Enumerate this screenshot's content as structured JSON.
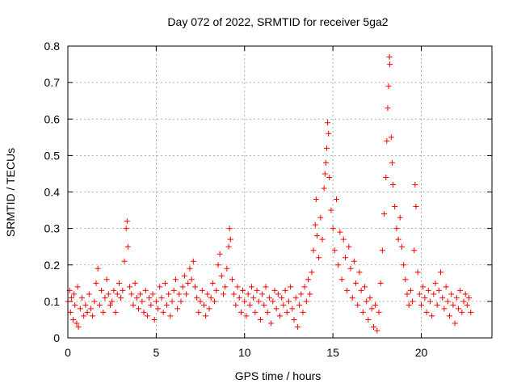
{
  "chart_data": {
    "type": "scatter",
    "title": "Day 072 of 2022, SRMTID for receiver 5ga2",
    "xlabel": "GPS time / hours",
    "ylabel": "SRMTID / TECUs",
    "xlim": [
      0,
      24
    ],
    "ylim": [
      0,
      0.8
    ],
    "x_ticks": [
      0,
      5,
      10,
      15,
      20
    ],
    "x_tick_labels": [
      "0",
      "5",
      "10",
      "15",
      "20"
    ],
    "y_ticks": [
      0,
      0.1,
      0.2,
      0.3,
      0.4,
      0.5,
      0.6,
      0.7,
      0.8
    ],
    "y_tick_labels": [
      "0",
      "0.1",
      "0.2",
      "0.3",
      "0.4",
      "0.5",
      "0.6",
      "0.7",
      "0.8"
    ],
    "grid": true,
    "marker": "plus",
    "marker_color": "#ff0000",
    "series": [
      {
        "name": "SRMTID",
        "points": [
          [
            0.0,
            0.1
          ],
          [
            0.1,
            0.13
          ],
          [
            0.15,
            0.07
          ],
          [
            0.2,
            0.11
          ],
          [
            0.3,
            0.05
          ],
          [
            0.35,
            0.12
          ],
          [
            0.4,
            0.09
          ],
          [
            0.5,
            0.04
          ],
          [
            0.55,
            0.14
          ],
          [
            0.6,
            0.03
          ],
          [
            0.7,
            0.08
          ],
          [
            0.8,
            0.11
          ],
          [
            0.9,
            0.06
          ],
          [
            1.0,
            0.09
          ],
          [
            1.1,
            0.07
          ],
          [
            1.2,
            0.12
          ],
          [
            1.3,
            0.08
          ],
          [
            1.4,
            0.06
          ],
          [
            1.5,
            0.1
          ],
          [
            1.6,
            0.15
          ],
          [
            1.7,
            0.19
          ],
          [
            1.8,
            0.09
          ],
          [
            1.9,
            0.13
          ],
          [
            2.0,
            0.07
          ],
          [
            2.1,
            0.11
          ],
          [
            2.2,
            0.16
          ],
          [
            2.3,
            0.12
          ],
          [
            2.4,
            0.09
          ],
          [
            2.5,
            0.1
          ],
          [
            2.6,
            0.13
          ],
          [
            2.7,
            0.07
          ],
          [
            2.8,
            0.12
          ],
          [
            2.9,
            0.15
          ],
          [
            3.0,
            0.11
          ],
          [
            3.1,
            0.13
          ],
          [
            3.2,
            0.21
          ],
          [
            3.3,
            0.3
          ],
          [
            3.35,
            0.32
          ],
          [
            3.4,
            0.25
          ],
          [
            3.5,
            0.14
          ],
          [
            3.6,
            0.12
          ],
          [
            3.7,
            0.09
          ],
          [
            3.8,
            0.15
          ],
          [
            3.9,
            0.11
          ],
          [
            4.0,
            0.08
          ],
          [
            4.1,
            0.12
          ],
          [
            4.2,
            0.1
          ],
          [
            4.3,
            0.07
          ],
          [
            4.4,
            0.13
          ],
          [
            4.5,
            0.06
          ],
          [
            4.6,
            0.11
          ],
          [
            4.7,
            0.09
          ],
          [
            4.8,
            0.12
          ],
          [
            4.9,
            0.05
          ],
          [
            5.0,
            0.1
          ],
          [
            5.1,
            0.08
          ],
          [
            5.2,
            0.14
          ],
          [
            5.3,
            0.11
          ],
          [
            5.4,
            0.07
          ],
          [
            5.5,
            0.15
          ],
          [
            5.6,
            0.09
          ],
          [
            5.7,
            0.12
          ],
          [
            5.8,
            0.06
          ],
          [
            5.9,
            0.1
          ],
          [
            6.0,
            0.13
          ],
          [
            6.1,
            0.16
          ],
          [
            6.2,
            0.08
          ],
          [
            6.3,
            0.12
          ],
          [
            6.4,
            0.1
          ],
          [
            6.5,
            0.14
          ],
          [
            6.6,
            0.17
          ],
          [
            6.7,
            0.12
          ],
          [
            6.8,
            0.15
          ],
          [
            6.9,
            0.19
          ],
          [
            7.0,
            0.16
          ],
          [
            7.1,
            0.21
          ],
          [
            7.2,
            0.14
          ],
          [
            7.3,
            0.11
          ],
          [
            7.4,
            0.07
          ],
          [
            7.5,
            0.1
          ],
          [
            7.6,
            0.13
          ],
          [
            7.7,
            0.09
          ],
          [
            7.8,
            0.06
          ],
          [
            7.9,
            0.12
          ],
          [
            8.0,
            0.08
          ],
          [
            8.1,
            0.11
          ],
          [
            8.2,
            0.15
          ],
          [
            8.3,
            0.1
          ],
          [
            8.4,
            0.13
          ],
          [
            8.5,
            0.2
          ],
          [
            8.6,
            0.23
          ],
          [
            8.7,
            0.17
          ],
          [
            8.8,
            0.12
          ],
          [
            8.9,
            0.14
          ],
          [
            9.0,
            0.19
          ],
          [
            9.1,
            0.25
          ],
          [
            9.15,
            0.3
          ],
          [
            9.2,
            0.27
          ],
          [
            9.3,
            0.16
          ],
          [
            9.4,
            0.12
          ],
          [
            9.5,
            0.09
          ],
          [
            9.6,
            0.14
          ],
          [
            9.7,
            0.11
          ],
          [
            9.8,
            0.07
          ],
          [
            9.9,
            0.13
          ],
          [
            10.0,
            0.1
          ],
          [
            10.1,
            0.06
          ],
          [
            10.2,
            0.12
          ],
          [
            10.3,
            0.09
          ],
          [
            10.4,
            0.14
          ],
          [
            10.5,
            0.11
          ],
          [
            10.6,
            0.07
          ],
          [
            10.7,
            0.13
          ],
          [
            10.8,
            0.1
          ],
          [
            10.9,
            0.05
          ],
          [
            11.0,
            0.12
          ],
          [
            11.1,
            0.09
          ],
          [
            11.2,
            0.14
          ],
          [
            11.3,
            0.07
          ],
          [
            11.4,
            0.11
          ],
          [
            11.5,
            0.04
          ],
          [
            11.6,
            0.1
          ],
          [
            11.7,
            0.13
          ],
          [
            11.8,
            0.08
          ],
          [
            11.9,
            0.12
          ],
          [
            12.0,
            0.06
          ],
          [
            12.1,
            0.11
          ],
          [
            12.2,
            0.09
          ],
          [
            12.3,
            0.13
          ],
          [
            12.4,
            0.07
          ],
          [
            12.5,
            0.1
          ],
          [
            12.6,
            0.14
          ],
          [
            12.7,
            0.08
          ],
          [
            12.8,
            0.05
          ],
          [
            12.9,
            0.11
          ],
          [
            13.0,
            0.03
          ],
          [
            13.1,
            0.09
          ],
          [
            13.2,
            0.12
          ],
          [
            13.3,
            0.07
          ],
          [
            13.4,
            0.14
          ],
          [
            13.5,
            0.1
          ],
          [
            13.6,
            0.16
          ],
          [
            13.7,
            0.12
          ],
          [
            13.8,
            0.18
          ],
          [
            13.9,
            0.24
          ],
          [
            14.0,
            0.31
          ],
          [
            14.05,
            0.38
          ],
          [
            14.1,
            0.28
          ],
          [
            14.2,
            0.22
          ],
          [
            14.3,
            0.33
          ],
          [
            14.4,
            0.27
          ],
          [
            14.5,
            0.41
          ],
          [
            14.55,
            0.45
          ],
          [
            14.6,
            0.48
          ],
          [
            14.65,
            0.52
          ],
          [
            14.7,
            0.59
          ],
          [
            14.75,
            0.56
          ],
          [
            14.8,
            0.44
          ],
          [
            14.9,
            0.35
          ],
          [
            15.0,
            0.3
          ],
          [
            15.1,
            0.24
          ],
          [
            15.2,
            0.38
          ],
          [
            15.3,
            0.2
          ],
          [
            15.4,
            0.29
          ],
          [
            15.5,
            0.16
          ],
          [
            15.6,
            0.27
          ],
          [
            15.7,
            0.22
          ],
          [
            15.8,
            0.13
          ],
          [
            15.9,
            0.25
          ],
          [
            16.0,
            0.19
          ],
          [
            16.1,
            0.11
          ],
          [
            16.2,
            0.21
          ],
          [
            16.3,
            0.15
          ],
          [
            16.4,
            0.09
          ],
          [
            16.5,
            0.18
          ],
          [
            16.6,
            0.13
          ],
          [
            16.7,
            0.07
          ],
          [
            16.8,
            0.14
          ],
          [
            16.9,
            0.1
          ],
          [
            17.0,
            0.05
          ],
          [
            17.1,
            0.11
          ],
          [
            17.2,
            0.08
          ],
          [
            17.3,
            0.03
          ],
          [
            17.4,
            0.09
          ],
          [
            17.5,
            0.02
          ],
          [
            17.6,
            0.07
          ],
          [
            17.7,
            0.15
          ],
          [
            17.8,
            0.24
          ],
          [
            17.9,
            0.34
          ],
          [
            18.0,
            0.44
          ],
          [
            18.05,
            0.54
          ],
          [
            18.1,
            0.63
          ],
          [
            18.15,
            0.69
          ],
          [
            18.2,
            0.77
          ],
          [
            18.22,
            0.75
          ],
          [
            18.3,
            0.55
          ],
          [
            18.35,
            0.48
          ],
          [
            18.4,
            0.42
          ],
          [
            18.5,
            0.36
          ],
          [
            18.6,
            0.3
          ],
          [
            18.7,
            0.27
          ],
          [
            18.8,
            0.33
          ],
          [
            18.9,
            0.25
          ],
          [
            19.0,
            0.2
          ],
          [
            19.1,
            0.16
          ],
          [
            19.2,
            0.12
          ],
          [
            19.3,
            0.09
          ],
          [
            19.4,
            0.13
          ],
          [
            19.5,
            0.1
          ],
          [
            19.6,
            0.24
          ],
          [
            19.65,
            0.42
          ],
          [
            19.7,
            0.36
          ],
          [
            19.8,
            0.18
          ],
          [
            19.9,
            0.12
          ],
          [
            20.0,
            0.09
          ],
          [
            20.1,
            0.14
          ],
          [
            20.2,
            0.11
          ],
          [
            20.3,
            0.07
          ],
          [
            20.4,
            0.13
          ],
          [
            20.5,
            0.1
          ],
          [
            20.6,
            0.06
          ],
          [
            20.7,
            0.12
          ],
          [
            20.8,
            0.15
          ],
          [
            20.9,
            0.09
          ],
          [
            21.0,
            0.13
          ],
          [
            21.1,
            0.18
          ],
          [
            21.2,
            0.11
          ],
          [
            21.3,
            0.08
          ],
          [
            21.4,
            0.14
          ],
          [
            21.5,
            0.1
          ],
          [
            21.6,
            0.06
          ],
          [
            21.7,
            0.12
          ],
          [
            21.8,
            0.09
          ],
          [
            21.9,
            0.04
          ],
          [
            22.0,
            0.11
          ],
          [
            22.1,
            0.08
          ],
          [
            22.2,
            0.13
          ],
          [
            22.3,
            0.07
          ],
          [
            22.4,
            0.1
          ],
          [
            22.5,
            0.12
          ],
          [
            22.6,
            0.09
          ],
          [
            22.7,
            0.11
          ],
          [
            22.8,
            0.07
          ]
        ]
      }
    ]
  }
}
